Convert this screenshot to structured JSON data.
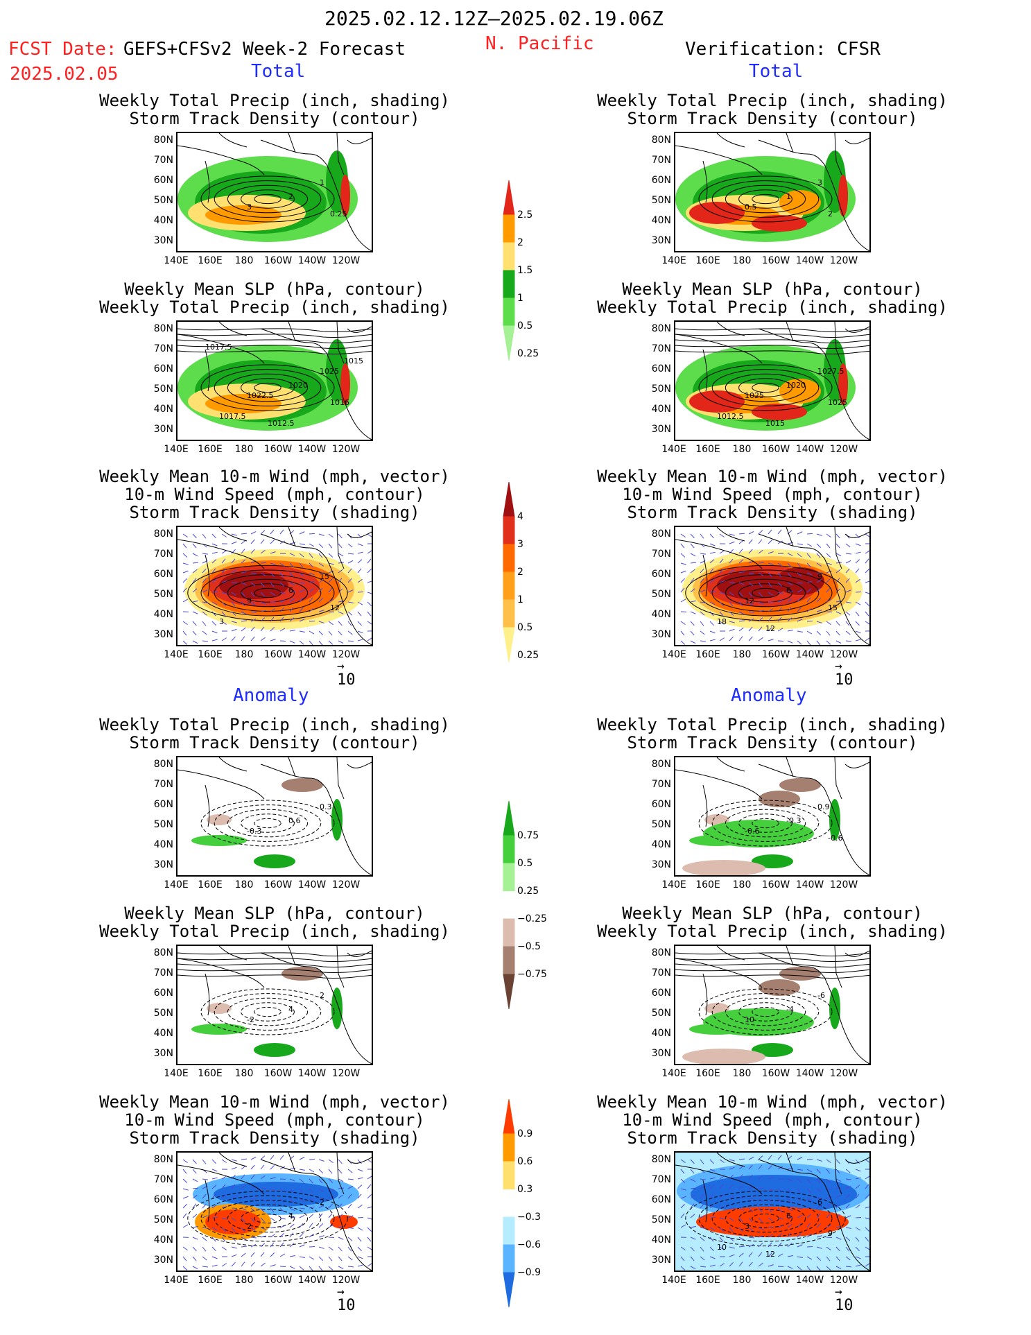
{
  "header": {
    "date_range": "2025.02.12.12Z—2025.02.19.06Z",
    "fcst_label": "FCST Date:",
    "fcst_model": "GEFS+CFSv2 Week-2 Forecast",
    "fcst_date": "2025.02.05",
    "region": "N. Pacific",
    "verification": "Verification: CFSR"
  },
  "sections": {
    "total": "Total",
    "anomaly": "Anomaly"
  },
  "panel_titles": {
    "precip_storm": [
      "Weekly Total Precip (inch, shading)",
      "Storm Track Density (contour)"
    ],
    "slp_precip": [
      "Weekly Mean SLP (hPa, contour)",
      "Weekly Total Precip (inch, shading)"
    ],
    "wind_storm": [
      "Weekly Mean 10-m Wind (mph, vector)",
      "10-m Wind Speed (mph, contour)",
      "Storm Track Density (shading)"
    ]
  },
  "axes": {
    "lat_ticks": [
      "80N",
      "70N",
      "60N",
      "50N",
      "40N",
      "30N"
    ],
    "lon_ticks": [
      "140E",
      "160E",
      "180",
      "160W",
      "140W",
      "120W"
    ]
  },
  "vector_ref": "10",
  "colorbars": [
    {
      "name": "total-precip",
      "labels": [
        "2.5",
        "2",
        "1.5",
        "1",
        "0.5",
        "0.25"
      ],
      "colors": [
        "#e2261a",
        "#ff9a00",
        "#ffe071",
        "#17a81b",
        "#5ddc4c",
        "#a6f096"
      ]
    },
    {
      "name": "total-storm-density",
      "labels": [
        "4",
        "3",
        "2",
        "1",
        "0.5",
        "0.25"
      ],
      "colors": [
        "#a01010",
        "#e0301b",
        "#ff6a00",
        "#ff9f1a",
        "#ffc04a",
        "#fff08c"
      ]
    },
    {
      "name": "anomaly-precip",
      "labels": [
        "0.75",
        "0.5",
        "0.25",
        "−0.25",
        "−0.5",
        "−0.75"
      ],
      "colors": [
        "#17a81b",
        "#45cf3d",
        "#a6f096",
        "#ffffff",
        "#dcbcae",
        "#a57f70",
        "#6b4335"
      ]
    },
    {
      "name": "anomaly-storm-density",
      "labels": [
        "0.9",
        "0.6",
        "0.3",
        "−0.3",
        "−0.6",
        "−0.9"
      ],
      "colors": [
        "#ff3c00",
        "#ff9a00",
        "#ffe06e",
        "#ffffff",
        "#b6ecff",
        "#5ab4ff",
        "#1f6be0"
      ]
    }
  ],
  "panel_labels": {
    "L1": [
      "3",
      "2",
      "1",
      "0.25"
    ],
    "R1": [
      "0.5",
      "1",
      "3",
      "2"
    ],
    "L2": [
      "1022.5",
      "1020",
      "1025",
      "1016",
      "1017.5",
      "1012.5",
      "1015",
      "1017.5"
    ],
    "R2": [
      "1025",
      "1020",
      "1027.5",
      "1025",
      "1012.5",
      "1015"
    ],
    "L3": [
      "9",
      "6",
      "15",
      "12",
      "3"
    ],
    "R3": [
      "12",
      "6",
      "9",
      "15",
      "18",
      "12"
    ],
    "L4": [
      "-0.3",
      "0.6",
      "0.3"
    ],
    "R4": [
      "-0.6",
      "-0.3",
      "0.9",
      "-0.6"
    ],
    "L5": [
      "-2",
      "4",
      "2"
    ],
    "R5": [
      "10",
      "-4",
      "-6"
    ],
    "L6": [
      "2",
      "4",
      "2"
    ],
    "R6": [
      "3",
      "6",
      "6",
      "9",
      "10",
      "12"
    ]
  }
}
